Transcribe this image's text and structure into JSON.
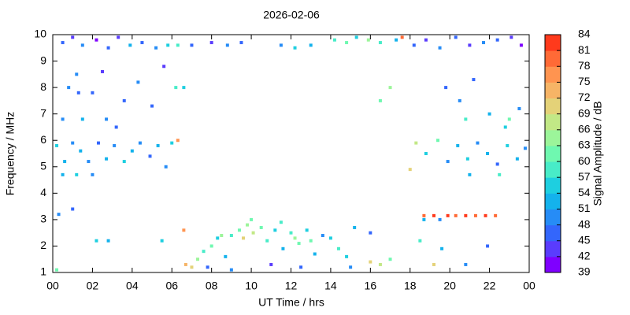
{
  "chart_data": {
    "type": "scatter",
    "title": "2026-02-06",
    "x_label": "UT Time / hrs",
    "y_label": "Frequency / MHz",
    "xlim": [
      0,
      24
    ],
    "xticks": [
      {
        "value": 0,
        "label": "00"
      },
      {
        "value": 2,
        "label": "02"
      },
      {
        "value": 4,
        "label": "04"
      },
      {
        "value": 6,
        "label": "06"
      },
      {
        "value": 8,
        "label": "08"
      },
      10,
      12,
      14,
      16,
      18,
      20,
      22,
      {
        "value": 24,
        "label": "00"
      }
    ],
    "ylim": [
      1,
      10
    ],
    "yticks": [
      1,
      2,
      3,
      4,
      5,
      6,
      7,
      8,
      9,
      10
    ],
    "grid": false,
    "colorbar": {
      "label": "Signal Amplitude / dB",
      "clim": [
        39,
        84
      ],
      "ticks": [
        39,
        42,
        45,
        48,
        51,
        54,
        57,
        60,
        63,
        66,
        69,
        72,
        75,
        78,
        81,
        84
      ],
      "colors": [
        "#7f00ff",
        "#5a3cfd",
        "#3366fc",
        "#268cf6",
        "#14b2ec",
        "#1ecfe0",
        "#48ecc8",
        "#6ff8b0",
        "#9cf59a",
        "#c2e886",
        "#e4d278",
        "#f6b466",
        "#ff9450",
        "#ff6a36",
        "#ff3a1c"
      ]
    },
    "x": [
      0.5,
      1.0,
      1.5,
      2.2,
      2.8,
      3.3,
      3.9,
      4.5,
      5.2,
      5.8,
      6.3,
      7.0,
      8.0,
      8.8,
      9.5,
      11.5,
      12.2,
      13.0,
      14.2,
      14.8,
      15.3,
      15.9,
      16.5,
      17.3,
      17.6,
      18.2,
      18.8,
      19.5,
      20.3,
      21.0,
      21.7,
      22.4,
      23.1,
      23.6,
      1.2,
      1.3,
      0.8,
      2.0,
      2.5,
      3.6,
      4.3,
      5.0,
      5.6,
      6.2,
      6.6,
      0.5,
      1.5,
      2.7,
      3.2,
      19.8,
      20.5,
      21.2,
      22.0,
      22.8,
      23.5,
      17.0,
      16.5,
      20.8,
      23.0,
      0.2,
      0.6,
      1.0,
      1.4,
      1.8,
      2.3,
      2.7,
      3.1,
      3.6,
      4.0,
      4.4,
      4.9,
      5.3,
      5.7,
      6.0,
      6.3,
      0.5,
      1.2,
      2.0,
      18.3,
      18.8,
      19.4,
      19.9,
      20.4,
      20.9,
      21.4,
      21.9,
      22.4,
      22.9,
      23.4,
      23.8,
      18.0,
      21.0,
      22.5,
      7.0,
      7.3,
      7.6,
      8.0,
      8.3,
      8.7,
      9.0,
      9.4,
      9.8,
      10.1,
      10.5,
      10.8,
      11.2,
      11.6,
      12.0,
      12.4,
      12.8,
      13.2,
      13.6,
      14.0,
      14.4,
      14.8,
      15.0,
      16.0,
      16.5,
      17.0,
      19.2,
      6.7,
      6.6,
      0.2,
      7.8,
      9.0,
      11.0,
      12.5,
      10.0,
      11.5,
      8.5,
      9.6,
      12.2,
      13.0,
      18.7,
      19.2,
      19.9,
      20.3,
      20.8,
      21.3,
      21.8,
      22.3,
      18.7,
      19.5,
      1.0,
      0.3,
      2.2,
      2.8,
      5.5,
      15.2,
      16.0,
      18.5,
      19.6,
      20.8,
      21.9
    ],
    "y": [
      9.7,
      9.9,
      9.6,
      9.8,
      9.5,
      9.9,
      9.6,
      9.7,
      9.5,
      9.6,
      9.6,
      9.6,
      9.7,
      9.6,
      9.7,
      9.6,
      9.5,
      9.6,
      9.8,
      9.7,
      9.9,
      9.8,
      9.7,
      9.8,
      9.9,
      9.6,
      9.8,
      9.5,
      9.9,
      9.6,
      9.7,
      9.8,
      9.9,
      9.6,
      8.5,
      7.8,
      8.0,
      7.8,
      8.6,
      7.5,
      8.2,
      7.3,
      8.8,
      8.0,
      8.0,
      6.8,
      6.8,
      6.8,
      6.5,
      8.0,
      7.5,
      8.3,
      7.0,
      6.5,
      7.2,
      8.0,
      7.5,
      6.8,
      6.8,
      5.8,
      5.2,
      5.9,
      5.6,
      5.2,
      5.9,
      5.3,
      5.8,
      5.2,
      5.6,
      5.9,
      5.4,
      5.8,
      5.0,
      5.9,
      6.0,
      4.7,
      4.7,
      4.7,
      5.9,
      5.5,
      6.0,
      5.2,
      5.8,
      5.3,
      5.9,
      5.5,
      5.1,
      5.8,
      5.3,
      5.7,
      4.9,
      4.7,
      4.7,
      1.2,
      1.5,
      1.8,
      2.0,
      2.3,
      1.6,
      2.4,
      2.6,
      2.8,
      2.5,
      2.7,
      2.2,
      2.6,
      1.9,
      2.5,
      2.1,
      2.6,
      1.7,
      2.4,
      2.3,
      1.9,
      1.6,
      1.2,
      1.4,
      1.3,
      1.5,
      1.3,
      1.3,
      2.6,
      1.1,
      1.2,
      1.1,
      1.3,
      1.2,
      3.0,
      2.9,
      2.4,
      2.3,
      2.3,
      2.2,
      3.15,
      3.15,
      3.15,
      3.15,
      3.15,
      3.15,
      3.15,
      3.15,
      3.0,
      3.0,
      3.4,
      3.2,
      2.2,
      2.2,
      2.2,
      2.7,
      2.5,
      2.2,
      1.9,
      1.3,
      2.0
    ],
    "values": [
      45,
      42,
      48,
      39,
      45,
      42,
      51,
      45,
      48,
      54,
      57,
      45,
      42,
      48,
      45,
      48,
      54,
      51,
      57,
      60,
      54,
      63,
      57,
      51,
      78,
      45,
      42,
      48,
      45,
      42,
      48,
      45,
      42,
      39,
      48,
      45,
      48,
      45,
      42,
      45,
      48,
      45,
      42,
      57,
      54,
      48,
      51,
      48,
      45,
      45,
      48,
      45,
      51,
      54,
      48,
      63,
      60,
      57,
      60,
      54,
      51,
      48,
      51,
      48,
      45,
      51,
      48,
      54,
      51,
      48,
      45,
      51,
      48,
      54,
      75,
      51,
      54,
      48,
      66,
      54,
      60,
      48,
      51,
      54,
      48,
      51,
      45,
      54,
      51,
      48,
      69,
      51,
      57,
      69,
      63,
      57,
      60,
      54,
      51,
      57,
      60,
      63,
      66,
      60,
      57,
      54,
      51,
      57,
      60,
      54,
      51,
      48,
      54,
      57,
      54,
      48,
      69,
      66,
      60,
      69,
      72,
      75,
      60,
      45,
      48,
      42,
      45,
      60,
      57,
      63,
      69,
      63,
      60,
      78,
      81,
      81,
      78,
      81,
      78,
      81,
      78,
      51,
      48,
      45,
      48,
      54,
      51,
      54,
      51,
      45,
      57,
      51,
      48,
      45
    ]
  }
}
